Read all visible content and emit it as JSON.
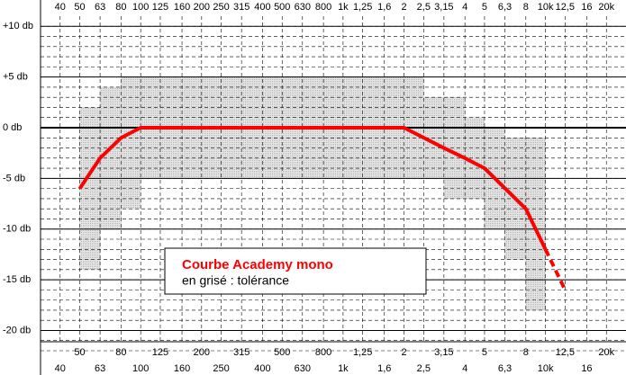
{
  "chart_data": {
    "type": "line",
    "xlog": true,
    "xlim": [
      32,
      25000
    ],
    "ylim": [
      -22,
      11
    ],
    "xticks": [
      40,
      50,
      63,
      80,
      100,
      125,
      160,
      200,
      250,
      315,
      400,
      500,
      630,
      800,
      {
        "value": 1000,
        "label": "1k"
      },
      {
        "value": 1250,
        "label": "1,25"
      },
      {
        "value": 1600,
        "label": "1,6"
      },
      {
        "value": 2000,
        "label": "2"
      },
      {
        "value": 2500,
        "label": "2,5"
      },
      {
        "value": 3150,
        "label": "3,15"
      },
      {
        "value": 4000,
        "label": "4"
      },
      {
        "value": 5000,
        "label": "5"
      },
      {
        "value": 6300,
        "label": "6,3"
      },
      {
        "value": 8000,
        "label": "8"
      },
      {
        "value": 10000,
        "label": "10k"
      },
      {
        "value": 12500,
        "label": "12,5"
      },
      {
        "value": 16000,
        "label": "16"
      },
      {
        "value": 20000,
        "label": "20k"
      }
    ],
    "yticks": [
      {
        "value": 10,
        "label": "+10 db"
      },
      {
        "value": 5,
        "label": "+5 db"
      },
      {
        "value": 0,
        "label": "0 db"
      },
      {
        "value": -5,
        "label": "-5 db"
      },
      {
        "value": -10,
        "label": "-10 db"
      },
      {
        "value": -15,
        "label": "-15 db"
      },
      {
        "value": -20,
        "label": "-20 db"
      }
    ],
    "yminor": [
      10,
      9,
      8,
      7,
      6,
      5,
      4,
      3,
      2,
      1,
      0,
      -1,
      -2,
      -3,
      -4,
      -5,
      -6,
      -7,
      -8,
      -9,
      -10,
      -11,
      -12,
      -13,
      -14,
      -15,
      -16,
      -17,
      -18,
      -19,
      -20,
      -21,
      -22
    ],
    "tolerance": {
      "color": "#c8c8c8",
      "bins": [
        50,
        63,
        80,
        100,
        2000,
        2500,
        3150,
        4000,
        5000,
        6300,
        8000,
        10000
      ],
      "upper": [
        2,
        4,
        5,
        5,
        5,
        3,
        3,
        1,
        0,
        -1,
        -1
      ],
      "lower": [
        -14,
        -10,
        -8,
        -5,
        -5,
        -5,
        -7,
        -7,
        -10,
        -13,
        -18
      ]
    },
    "series": [
      {
        "color": "#ff0000",
        "x": [
          50,
          63,
          80,
          100,
          2000,
          3150,
          4000,
          5000,
          8000,
          10000
        ],
        "values": [
          -6,
          -3,
          -1,
          0,
          0,
          -2,
          -3,
          -4,
          -8,
          -12
        ]
      },
      {
        "color": "#ff0000",
        "dashed": true,
        "x": [
          10000,
          12500
        ],
        "values": [
          -12,
          -16
        ]
      }
    ],
    "legend": {
      "title": "Courbe Academy mono",
      "subtitle": "en grisé : tolérance"
    }
  }
}
